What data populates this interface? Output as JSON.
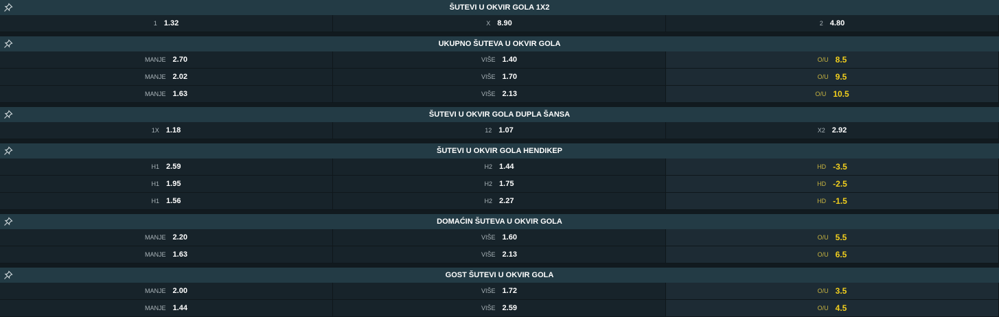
{
  "colors": {
    "header_bg": "#233b45",
    "row_bg": "#17232a",
    "line_bg": "#1d2b34",
    "line_value": "#f2cf1d"
  },
  "sections": [
    {
      "title": "ŠUTEVI U OKVIR GOLA 1X2",
      "rows": [
        [
          {
            "l": "1",
            "v": "1.32"
          },
          {
            "l": "X",
            "v": "8.90"
          },
          {
            "l": "2",
            "v": "4.80"
          }
        ]
      ]
    },
    {
      "title": "UKUPNO ŠUTEVA U OKVIR GOLA",
      "line": true,
      "rows": [
        [
          {
            "l": "MANJE",
            "v": "2.70"
          },
          {
            "l": "VIŠE",
            "v": "1.40"
          },
          {
            "l": "O/U",
            "v": "8.5"
          }
        ],
        [
          {
            "l": "MANJE",
            "v": "2.02"
          },
          {
            "l": "VIŠE",
            "v": "1.70"
          },
          {
            "l": "O/U",
            "v": "9.5"
          }
        ],
        [
          {
            "l": "MANJE",
            "v": "1.63"
          },
          {
            "l": "VIŠE",
            "v": "2.13"
          },
          {
            "l": "O/U",
            "v": "10.5"
          }
        ]
      ]
    },
    {
      "title": "ŠUTEVI U OKVIR GOLA DUPLA ŠANSA",
      "rows": [
        [
          {
            "l": "1X",
            "v": "1.18"
          },
          {
            "l": "12",
            "v": "1.07"
          },
          {
            "l": "X2",
            "v": "2.92"
          }
        ]
      ]
    },
    {
      "title": "ŠUTEVI U OKVIR GOLA HENDIKEP",
      "line": true,
      "rows": [
        [
          {
            "l": "H1",
            "v": "2.59"
          },
          {
            "l": "H2",
            "v": "1.44"
          },
          {
            "l": "HD",
            "v": "-3.5"
          }
        ],
        [
          {
            "l": "H1",
            "v": "1.95"
          },
          {
            "l": "H2",
            "v": "1.75"
          },
          {
            "l": "HD",
            "v": "-2.5"
          }
        ],
        [
          {
            "l": "H1",
            "v": "1.56"
          },
          {
            "l": "H2",
            "v": "2.27"
          },
          {
            "l": "HD",
            "v": "-1.5"
          }
        ]
      ]
    },
    {
      "title": "DOMAĆIN ŠUTEVA U OKVIR GOLA",
      "line": true,
      "rows": [
        [
          {
            "l": "MANJE",
            "v": "2.20"
          },
          {
            "l": "VIŠE",
            "v": "1.60"
          },
          {
            "l": "O/U",
            "v": "5.5"
          }
        ],
        [
          {
            "l": "MANJE",
            "v": "1.63"
          },
          {
            "l": "VIŠE",
            "v": "2.13"
          },
          {
            "l": "O/U",
            "v": "6.5"
          }
        ]
      ]
    },
    {
      "title": "GOST ŠUTEVI U OKVIR GOLA",
      "line": true,
      "rows": [
        [
          {
            "l": "MANJE",
            "v": "2.00"
          },
          {
            "l": "VIŠE",
            "v": "1.72"
          },
          {
            "l": "O/U",
            "v": "3.5"
          }
        ],
        [
          {
            "l": "MANJE",
            "v": "1.44"
          },
          {
            "l": "VIŠE",
            "v": "2.59"
          },
          {
            "l": "O/U",
            "v": "4.5"
          }
        ]
      ]
    }
  ]
}
